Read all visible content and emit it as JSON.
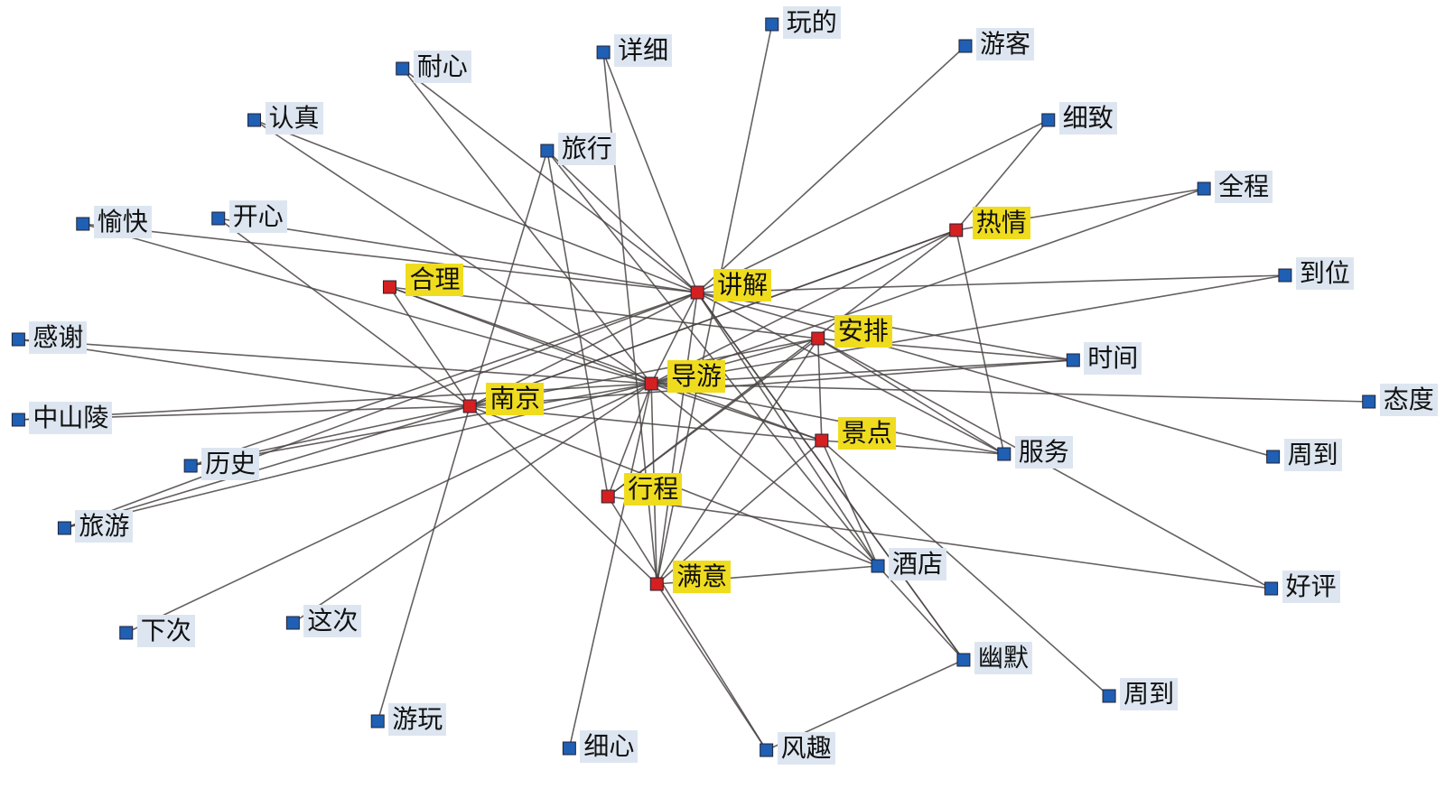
{
  "nodes": [
    {
      "label": "玩的",
      "color": "#1f5fb4"
    },
    {
      "label": "详细",
      "color": "#1f5fb4"
    },
    {
      "label": "游客",
      "color": "#1f5fb4"
    },
    {
      "label": "耐心",
      "color": "#1f5fb4"
    },
    {
      "label": "认真",
      "color": "#1f5fb4"
    },
    {
      "label": "细致",
      "color": "#1f5fb4"
    },
    {
      "label": "旅行",
      "color": "#1f5fb4"
    },
    {
      "label": "全程",
      "color": "#1f5fb4"
    },
    {
      "label": "愉快",
      "color": "#1f5fb4"
    },
    {
      "label": "开心",
      "color": "#1f5fb4"
    },
    {
      "label": "热情",
      "color": "#d42020"
    },
    {
      "label": "合理",
      "color": "#d42020"
    },
    {
      "label": "讲解",
      "color": "#d42020"
    },
    {
      "label": "到位",
      "color": "#1f5fb4"
    },
    {
      "label": "感谢",
      "color": "#1f5fb4"
    },
    {
      "label": "安排",
      "color": "#d42020"
    },
    {
      "label": "时间",
      "color": "#1f5fb4"
    },
    {
      "label": "导游",
      "color": "#d42020"
    },
    {
      "label": "态度",
      "color": "#1f5fb4"
    },
    {
      "label": "中山陵",
      "color": "#1f5fb4"
    },
    {
      "label": "南京",
      "color": "#d42020"
    },
    {
      "label": "景点",
      "color": "#d42020"
    },
    {
      "label": "服务",
      "color": "#1f5fb4"
    },
    {
      "label": "周到",
      "color": "#1f5fb4"
    },
    {
      "label": "历史",
      "color": "#1f5fb4"
    },
    {
      "label": "行程",
      "color": "#d42020"
    },
    {
      "label": "旅游",
      "color": "#1f5fb4"
    },
    {
      "label": "酒店",
      "color": "#1f5fb4"
    },
    {
      "label": "满意",
      "color": "#d42020"
    },
    {
      "label": "好评",
      "color": "#1f5fb4"
    },
    {
      "label": "下次",
      "color": "#1f5fb4"
    },
    {
      "label": "这次",
      "color": "#1f5fb4"
    },
    {
      "label": "幽默",
      "color": "#1f5fb4"
    },
    {
      "label": "周到",
      "color": "#1f5fb4"
    },
    {
      "label": "游玩",
      "color": "#1f5fb4"
    },
    {
      "label": "细心",
      "color": "#1f5fb4"
    },
    {
      "label": "风趣",
      "color": "#1f5fb4"
    }
  ]
}
